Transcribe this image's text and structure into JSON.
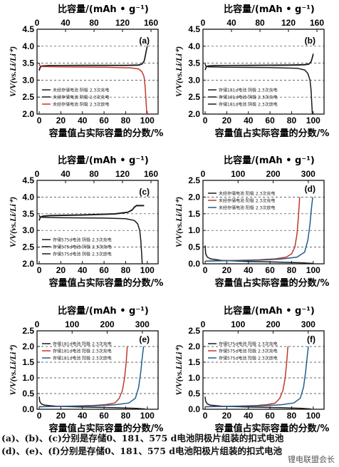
{
  "caption": {
    "line1": "(a)、(b)、(c)分别是存储0、181、575 d电池阴极片组装的扣式电池",
    "line2": "(d)、(e)、(f)分别是存储0、181、575 d电池阳极片组装的扣式电池"
  },
  "watermark": "锂电联盟会长",
  "colors": {
    "black": "#1a1a1a",
    "red": "#c0392b",
    "blue": "#1f5f8b"
  },
  "chart_data": [
    {
      "id": "a",
      "type": "line",
      "panel_label": "(a)",
      "top_axis_label": "比容量/(mAh • g⁻¹)",
      "top_ticks": [
        "0",
        "40",
        "80",
        "120",
        "160"
      ],
      "top_range": [
        0,
        170
      ],
      "xlabel": "容量值占实际容量的分数/%",
      "x_ticks": [
        "0",
        "20",
        "40",
        "60",
        "80",
        "100"
      ],
      "xlim": [
        -2,
        110
      ],
      "ylabel": "V/V(vs.Li/Li⁺)",
      "y_ticks": [
        "2.0",
        "2.5",
        "3.0",
        "3.5",
        "4.0",
        "4.5"
      ],
      "ylim": [
        2.0,
        4.5
      ],
      "grid": "dashed-horizontal",
      "legend_position": "bottom-left",
      "series": [
        {
          "name": "未经存储电池 阴极 2.3次充电",
          "color": "black",
          "points": [
            [
              0,
              3.28
            ],
            [
              1,
              3.38
            ],
            [
              3,
              3.42
            ],
            [
              10,
              3.43
            ],
            [
              40,
              3.44
            ],
            [
              80,
              3.44
            ],
            [
              92,
              3.45
            ],
            [
              95,
              3.47
            ],
            [
              97,
              3.56
            ],
            [
              98,
              3.7
            ],
            [
              99,
              3.86
            ],
            [
              100,
              4.0
            ]
          ]
        },
        {
          "name": "未经存储电池 阴极 2.3次充电",
          "color": "black",
          "points": [
            [
              0,
              3.3
            ],
            [
              1,
              3.39
            ],
            [
              3,
              3.42
            ],
            [
              10,
              3.43
            ],
            [
              40,
              3.43
            ],
            [
              80,
              3.43
            ],
            [
              92,
              3.44
            ],
            [
              95,
              3.47
            ],
            [
              97,
              3.55
            ],
            [
              98,
              3.68
            ],
            [
              99,
              3.85
            ],
            [
              100,
              4.0
            ]
          ]
        },
        {
          "name": "未经存储电池 阴极 2.3次放电",
          "color": "red",
          "points": [
            [
              0,
              3.5
            ],
            [
              0.6,
              3.43
            ],
            [
              3,
              3.4
            ],
            [
              20,
              3.39
            ],
            [
              60,
              3.38
            ],
            [
              85,
              3.36
            ],
            [
              92,
              3.33
            ],
            [
              95,
              3.25
            ],
            [
              97,
              3.1
            ],
            [
              98,
              2.8
            ],
            [
              99,
              2.3
            ],
            [
              99.5,
              2.0
            ]
          ]
        }
      ]
    },
    {
      "id": "b",
      "type": "line",
      "panel_label": "(b)",
      "top_axis_label": "比容量/(mAh • g⁻¹)",
      "top_ticks": [
        "0",
        "40",
        "80",
        "120",
        "160"
      ],
      "top_range": [
        0,
        170
      ],
      "xlabel": "容量值占实际容量的分数/%",
      "x_ticks": [
        "0",
        "20",
        "40",
        "60",
        "80",
        "100"
      ],
      "xlim": [
        -2,
        110
      ],
      "ylabel": "V/V(vs.Li/Li⁺)",
      "y_ticks": [
        "2.0",
        "2.5",
        "3.0",
        "3.5",
        "4.0",
        "4.5"
      ],
      "ylim": [
        2.0,
        4.5
      ],
      "grid": "dashed-horizontal",
      "legend_position": "bottom-left",
      "series": [
        {
          "name": "存储181d电池 阴极 2.3次充电",
          "color": "black",
          "points": [
            [
              0,
              3.3
            ],
            [
              1,
              3.39
            ],
            [
              3,
              3.42
            ],
            [
              10,
              3.43
            ],
            [
              40,
              3.44
            ],
            [
              80,
              3.45
            ],
            [
              92,
              3.46
            ],
            [
              96,
              3.48
            ],
            [
              98,
              3.55
            ],
            [
              99,
              3.65
            ],
            [
              100,
              3.78
            ]
          ]
        },
        {
          "name": "存储181d电池 阴极 2.3次充电",
          "color": "black",
          "points": [
            [
              0,
              3.3
            ],
            [
              1,
              3.39
            ],
            [
              3,
              3.42
            ],
            [
              10,
              3.43
            ],
            [
              40,
              3.43
            ],
            [
              80,
              3.44
            ],
            [
              92,
              3.45
            ],
            [
              96,
              3.47
            ],
            [
              98,
              3.54
            ],
            [
              99,
              3.64
            ],
            [
              100,
              3.76
            ]
          ]
        },
        {
          "name": "存储181d电池 阴极 2.3次放电",
          "color": "black",
          "points": [
            [
              0,
              3.48
            ],
            [
              0.6,
              3.42
            ],
            [
              3,
              3.39
            ],
            [
              20,
              3.38
            ],
            [
              60,
              3.37
            ],
            [
              85,
              3.35
            ],
            [
              92,
              3.3
            ],
            [
              95,
              3.2
            ],
            [
              97,
              3.0
            ],
            [
              98,
              2.7
            ],
            [
              98.7,
              2.3
            ],
            [
              99.2,
              2.0
            ]
          ]
        }
      ]
    },
    {
      "id": "c",
      "type": "line",
      "panel_label": "(c)",
      "top_axis_label": "比容量/(mAh • g⁻¹)",
      "top_ticks": [
        "0",
        "40",
        "80",
        "120",
        "160"
      ],
      "top_range": [
        0,
        170
      ],
      "xlabel": "容量值占实际容量的分数/%",
      "x_ticks": [
        "0",
        "20",
        "40",
        "60",
        "80",
        "100"
      ],
      "xlim": [
        -2,
        110
      ],
      "ylabel": "V/V(vs.Li/Li⁺)",
      "y_ticks": [
        "2.0",
        "2.5",
        "3.0",
        "3.5",
        "4.0",
        "4.5"
      ],
      "ylim": [
        2.0,
        4.5
      ],
      "grid": "dashed-horizontal",
      "legend_position": "bottom-left",
      "series": [
        {
          "name": "存储575d电池 阴极 2.3次充电",
          "color": "black",
          "points": [
            [
              0,
              3.3
            ],
            [
              1,
              3.4
            ],
            [
              3,
              3.43
            ],
            [
              10,
              3.45
            ],
            [
              40,
              3.47
            ],
            [
              70,
              3.5
            ],
            [
              82,
              3.55
            ],
            [
              86,
              3.62
            ],
            [
              88,
              3.7
            ],
            [
              90,
              3.75
            ],
            [
              97,
              3.75
            ]
          ]
        },
        {
          "name": "存储575d电池 阴极 2.3次充电",
          "color": "black",
          "points": [
            [
              0,
              3.3
            ],
            [
              1,
              3.39
            ],
            [
              3,
              3.42
            ],
            [
              10,
              3.44
            ],
            [
              40,
              3.46
            ],
            [
              70,
              3.49
            ],
            [
              82,
              3.54
            ],
            [
              86,
              3.61
            ],
            [
              88,
              3.69
            ],
            [
              90,
              3.74
            ],
            [
              97,
              3.74
            ]
          ]
        },
        {
          "name": "存储575d电池 阴极 2.3次放电",
          "color": "black",
          "points": [
            [
              0,
              3.46
            ],
            [
              0.6,
              3.41
            ],
            [
              3,
              3.39
            ],
            [
              20,
              3.38
            ],
            [
              60,
              3.37
            ],
            [
              80,
              3.35
            ],
            [
              88,
              3.3
            ],
            [
              91,
              3.2
            ],
            [
              93,
              3.0
            ],
            [
              94,
              2.7
            ],
            [
              94.8,
              2.3
            ],
            [
              95.3,
              2.0
            ]
          ]
        }
      ]
    },
    {
      "id": "d",
      "type": "line",
      "panel_label": "(d)",
      "top_axis_label": "比容量/(mAh • g⁻¹)",
      "top_ticks": [
        "0",
        "100",
        "200",
        "300"
      ],
      "top_range": [
        0,
        345
      ],
      "xlabel": "容量值占实际容量的分数/%",
      "x_ticks": [
        "0",
        "20",
        "40",
        "60",
        "80",
        "100"
      ],
      "xlim": [
        -2,
        110
      ],
      "ylabel": "V/V(vs.Li/Li⁺)",
      "y_ticks": [
        "0.0",
        "0.5",
        "1.0",
        "1.5",
        "2.0",
        "2.5"
      ],
      "ylim": [
        0.0,
        2.5
      ],
      "grid": "dashed-horizontal",
      "legend_position": "top-left",
      "series": [
        {
          "name": "未经存储电池 阳极 2.3次充电",
          "color": "black",
          "points": [
            [
              0,
              0.55
            ],
            [
              0.5,
              0.3
            ],
            [
              2,
              0.2
            ],
            [
              5,
              0.15
            ],
            [
              15,
              0.1
            ],
            [
              40,
              0.07
            ],
            [
              70,
              0.05
            ],
            [
              90,
              0.03
            ],
            [
              100,
              0.01
            ]
          ]
        },
        {
          "name": "未经存储电池 阳极 2.3次充电",
          "color": "red",
          "points": [
            [
              0,
              0.08
            ],
            [
              10,
              0.09
            ],
            [
              30,
              0.1
            ],
            [
              50,
              0.12
            ],
            [
              65,
              0.15
            ],
            [
              75,
              0.2
            ],
            [
              80,
              0.3
            ],
            [
              83,
              0.5
            ],
            [
              85,
              0.9
            ],
            [
              86.5,
              1.5
            ],
            [
              87.5,
              2.0
            ]
          ]
        },
        {
          "name": "未经存储电池 阳极 2.3次放电",
          "color": "blue",
          "points": [
            [
              0,
              0.08
            ],
            [
              20,
              0.09
            ],
            [
              50,
              0.11
            ],
            [
              70,
              0.14
            ],
            [
              85,
              0.2
            ],
            [
              92,
              0.35
            ],
            [
              95,
              0.7
            ],
            [
              97,
              1.2
            ],
            [
              98.5,
              1.7
            ],
            [
              99.5,
              2.0
            ]
          ]
        }
      ]
    },
    {
      "id": "e",
      "type": "line",
      "panel_label": "(e)",
      "top_axis_label": "比容量/(mAh • g⁻¹)",
      "top_ticks": [
        "0",
        "100",
        "200",
        "300"
      ],
      "top_range": [
        0,
        345
      ],
      "xlabel": "容量值占实际容量的分数/%",
      "x_ticks": [
        "0",
        "20",
        "40",
        "60",
        "80",
        "100"
      ],
      "xlim": [
        -2,
        110
      ],
      "ylabel": "V/V(vs.Li/Li⁺)",
      "y_ticks": [
        "0.0",
        "0.5",
        "1.0",
        "1.5",
        "2.0",
        "2.5"
      ],
      "ylim": [
        0.0,
        2.5
      ],
      "grid": "dashed-horizontal",
      "legend_position": "top-left",
      "series": [
        {
          "name": "存储181d电池 阳极 2.3次充电",
          "color": "black",
          "points": [
            [
              0,
              0.4
            ],
            [
              0.5,
              0.25
            ],
            [
              2,
              0.17
            ],
            [
              5,
              0.13
            ],
            [
              15,
              0.1
            ],
            [
              40,
              0.07
            ],
            [
              70,
              0.05
            ],
            [
              90,
              0.03
            ],
            [
              98,
              0.01
            ]
          ]
        },
        {
          "name": "存储181d电池 阳极 2.3次充电",
          "color": "red",
          "points": [
            [
              0,
              0.08
            ],
            [
              10,
              0.09
            ],
            [
              30,
              0.1
            ],
            [
              50,
              0.12
            ],
            [
              62,
              0.15
            ],
            [
              70,
              0.2
            ],
            [
              74,
              0.35
            ],
            [
              77,
              0.6
            ],
            [
              79,
              1.0
            ],
            [
              80.5,
              1.5
            ],
            [
              81.5,
              2.0
            ]
          ]
        },
        {
          "name": "存储181d电池 阳极 2.3次放电",
          "color": "blue",
          "points": [
            [
              0,
              0.08
            ],
            [
              20,
              0.09
            ],
            [
              50,
              0.11
            ],
            [
              70,
              0.14
            ],
            [
              83,
              0.2
            ],
            [
              89,
              0.35
            ],
            [
              92,
              0.7
            ],
            [
              94,
              1.2
            ],
            [
              95.5,
              1.7
            ],
            [
              96.5,
              2.0
            ]
          ]
        }
      ]
    },
    {
      "id": "f",
      "type": "line",
      "panel_label": "(f)",
      "top_axis_label": "比容量/(mAh • g⁻¹)",
      "top_ticks": [
        "0",
        "100",
        "200",
        "300"
      ],
      "top_range": [
        0,
        345
      ],
      "xlabel": "容量值占实际容量的分数/%",
      "x_ticks": [
        "0",
        "20",
        "40",
        "60",
        "80",
        "100"
      ],
      "xlim": [
        -2,
        110
      ],
      "ylabel": "V/V(vs.Li/Li⁺)",
      "y_ticks": [
        "0.0",
        "0.5",
        "1.0",
        "1.5",
        "2.0",
        "2.5"
      ],
      "ylim": [
        0.0,
        2.5
      ],
      "grid": "dashed-horizontal",
      "legend_position": "top-left",
      "series": [
        {
          "name": "存储575d电池 阳极 2.3次充电",
          "color": "black",
          "points": [
            [
              0,
              0.4
            ],
            [
              0.5,
              0.25
            ],
            [
              2,
              0.17
            ],
            [
              5,
              0.13
            ],
            [
              15,
              0.1
            ],
            [
              40,
              0.07
            ],
            [
              70,
              0.05
            ],
            [
              90,
              0.03
            ],
            [
              98,
              0.01
            ]
          ]
        },
        {
          "name": "存储575d电池 阳极 2.3次充电",
          "color": "red",
          "points": [
            [
              0,
              0.08
            ],
            [
              10,
              0.09
            ],
            [
              30,
              0.1
            ],
            [
              48,
              0.12
            ],
            [
              58,
              0.15
            ],
            [
              65,
              0.2
            ],
            [
              69,
              0.35
            ],
            [
              72,
              0.6
            ],
            [
              74,
              1.0
            ],
            [
              75.5,
              1.5
            ],
            [
              76.5,
              2.0
            ]
          ]
        },
        {
          "name": "存储575d电池 阳极 2.3次放电",
          "color": "blue",
          "points": [
            [
              0,
              0.08
            ],
            [
              20,
              0.09
            ],
            [
              50,
              0.11
            ],
            [
              70,
              0.14
            ],
            [
              82,
              0.2
            ],
            [
              88,
              0.35
            ],
            [
              91,
              0.7
            ],
            [
              93,
              1.2
            ],
            [
              94.5,
              1.7
            ],
            [
              95.5,
              2.0
            ]
          ]
        }
      ]
    }
  ]
}
